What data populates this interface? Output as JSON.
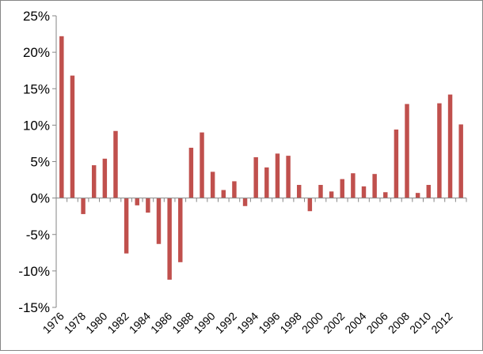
{
  "chart_data": {
    "type": "bar",
    "title": "",
    "xlabel": "",
    "ylabel": "",
    "ylim": [
      -15,
      25
    ],
    "yticks": [
      -15,
      -10,
      -5,
      0,
      5,
      10,
      15,
      20,
      25
    ],
    "ytick_labels": [
      "-15%",
      "-10%",
      "-5%",
      "0%",
      "5%",
      "10%",
      "15%",
      "20%",
      "25%"
    ],
    "y_unit": "%",
    "grid": false,
    "legend": "none",
    "bar_color": "#C0504D",
    "categories": [
      1976,
      1977,
      1978,
      1979,
      1980,
      1981,
      1982,
      1983,
      1984,
      1985,
      1986,
      1987,
      1988,
      1989,
      1990,
      1991,
      1992,
      1993,
      1994,
      1995,
      1996,
      1997,
      1998,
      1999,
      2000,
      2001,
      2002,
      2003,
      2004,
      2005,
      2006,
      2007,
      2008,
      2009,
      2010,
      2011,
      2012,
      2013
    ],
    "xtick_labels": [
      "1976",
      "1978",
      "1980",
      "1982",
      "1984",
      "1986",
      "1988",
      "1990",
      "1992",
      "1994",
      "1996",
      "1998",
      "2000",
      "2002",
      "2004",
      "2006",
      "2008",
      "2010",
      "2012"
    ],
    "values": [
      22.2,
      16.8,
      -2.2,
      4.5,
      5.4,
      9.2,
      -7.6,
      -1.0,
      -2.0,
      -6.3,
      -11.2,
      -8.8,
      6.9,
      9.0,
      3.6,
      1.1,
      2.3,
      -1.1,
      5.6,
      4.2,
      6.1,
      5.8,
      1.8,
      -1.8,
      1.8,
      0.9,
      2.6,
      3.4,
      1.6,
      3.3,
      0.8,
      9.4,
      12.9,
      0.7,
      1.8,
      13.0,
      14.2,
      10.1
    ]
  }
}
